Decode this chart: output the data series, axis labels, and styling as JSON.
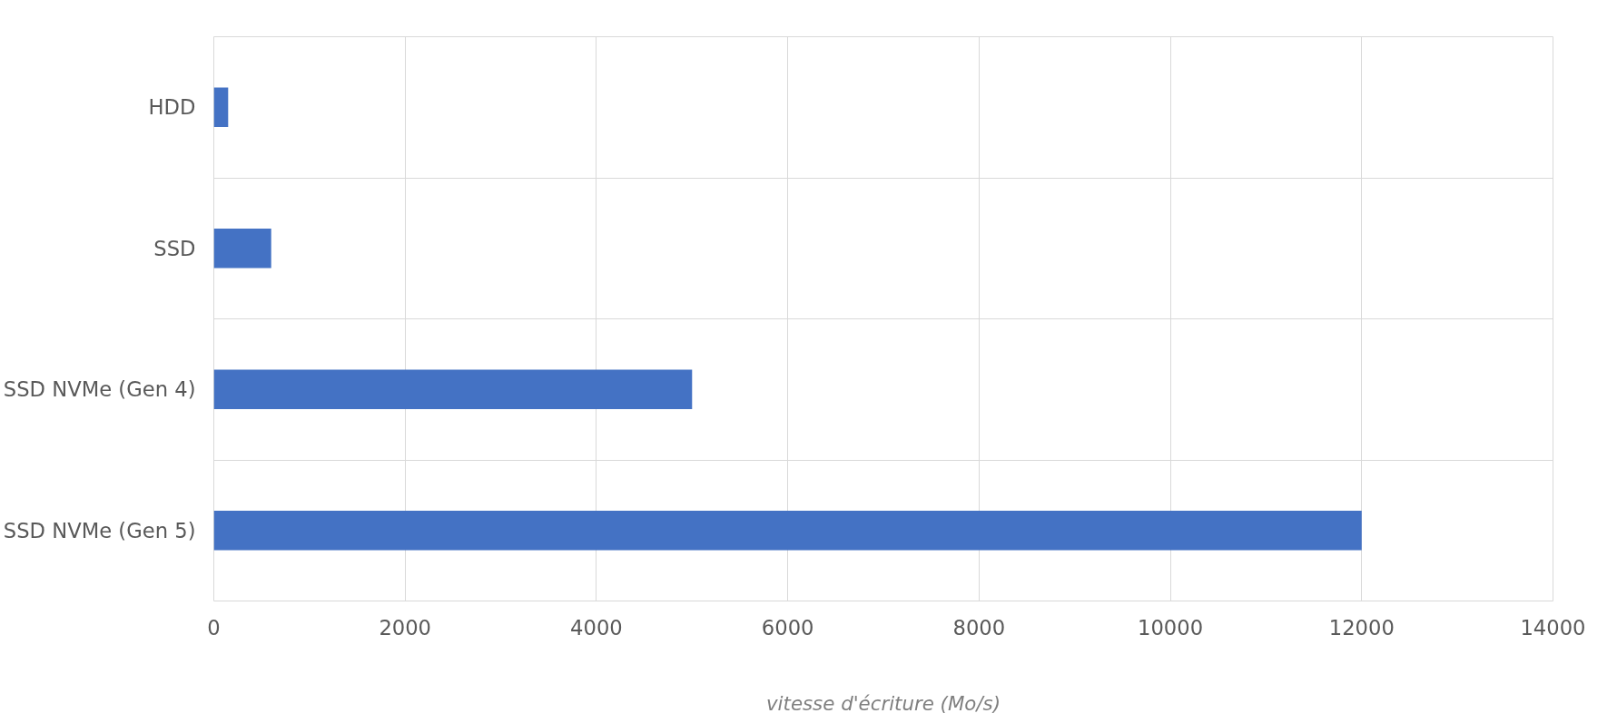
{
  "chart_data": {
    "type": "bar",
    "orientation": "horizontal",
    "categories": [
      "HDD",
      "SSD",
      "SSD NVMe (Gen 4)",
      "SSD NVMe (Gen 5)"
    ],
    "values": [
      150,
      600,
      5000,
      12000
    ],
    "color": "#4472c4",
    "xlim": [
      0,
      14000
    ],
    "xticks": [
      0,
      2000,
      4000,
      6000,
      8000,
      10000,
      12000,
      14000
    ],
    "xlabel": "vitesse d'écriture (Mo/s)",
    "grid": true
  }
}
